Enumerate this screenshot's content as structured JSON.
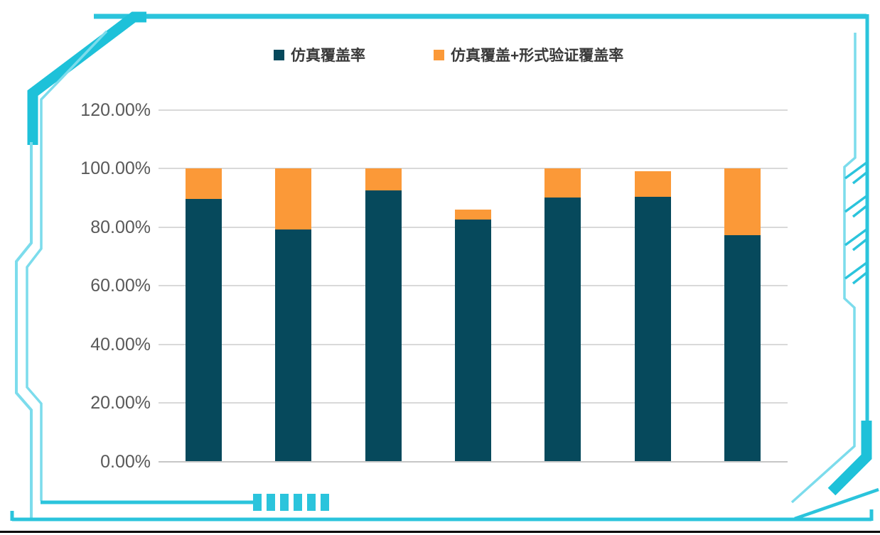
{
  "frame": {
    "main_color": "#2BC4DC",
    "accent_color": "#1EC1D9",
    "light_color": "#7CDCEC",
    "bottom_border_color": "#000000"
  },
  "legend": {
    "position": "top"
  },
  "chart_data": {
    "type": "bar",
    "stacked": true,
    "title": "",
    "x_axis_labels_visible": false,
    "n_bars": 7,
    "series": [
      {
        "name": "仿真覆盖率",
        "color": "#06495C",
        "values": [
          89.7,
          79.2,
          92.6,
          82.7,
          90.2,
          90.5,
          77.3
        ]
      },
      {
        "name": "仿真覆盖+形式验证覆盖率",
        "color": "#FB9938",
        "values": [
          10.3,
          20.8,
          7.4,
          3.3,
          9.8,
          8.7,
          22.7
        ]
      }
    ],
    "stack_totals_pct": [
      100,
      100,
      100,
      86,
      100,
      99.2,
      100
    ],
    "ylim": [
      0,
      120
    ],
    "ytick_labels": [
      "0.00%",
      "20.00%",
      "40.00%",
      "60.00%",
      "80.00%",
      "100.00%",
      "120.00%"
    ],
    "grid": true,
    "grid_color": "#D9D9D9",
    "axis_text_color": "#595959",
    "legend_position": "top"
  }
}
